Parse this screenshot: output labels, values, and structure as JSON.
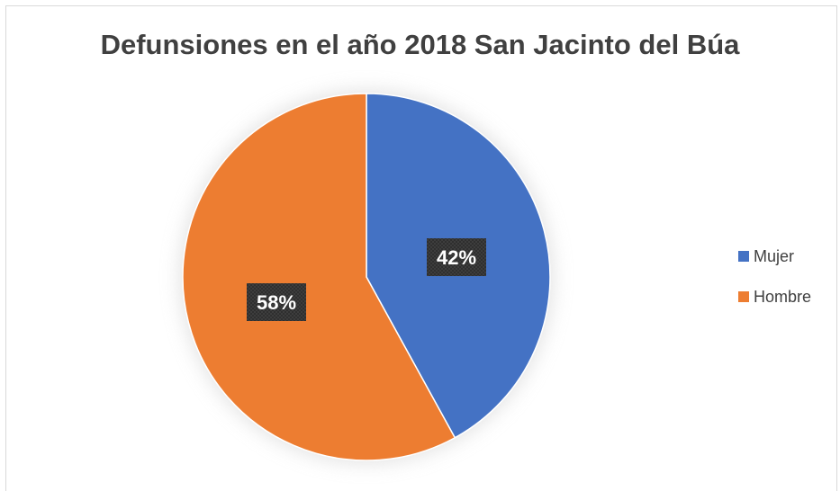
{
  "chart_data": {
    "type": "pie",
    "title": "Defunsiones en el año 2018 San Jacinto del Búa",
    "categories": [
      "Mujer",
      "Hombre"
    ],
    "values": [
      42,
      58
    ],
    "labels": [
      "42%",
      "58%"
    ],
    "colors": [
      "#4472C4",
      "#ED7D31"
    ],
    "legend_position": "right"
  }
}
